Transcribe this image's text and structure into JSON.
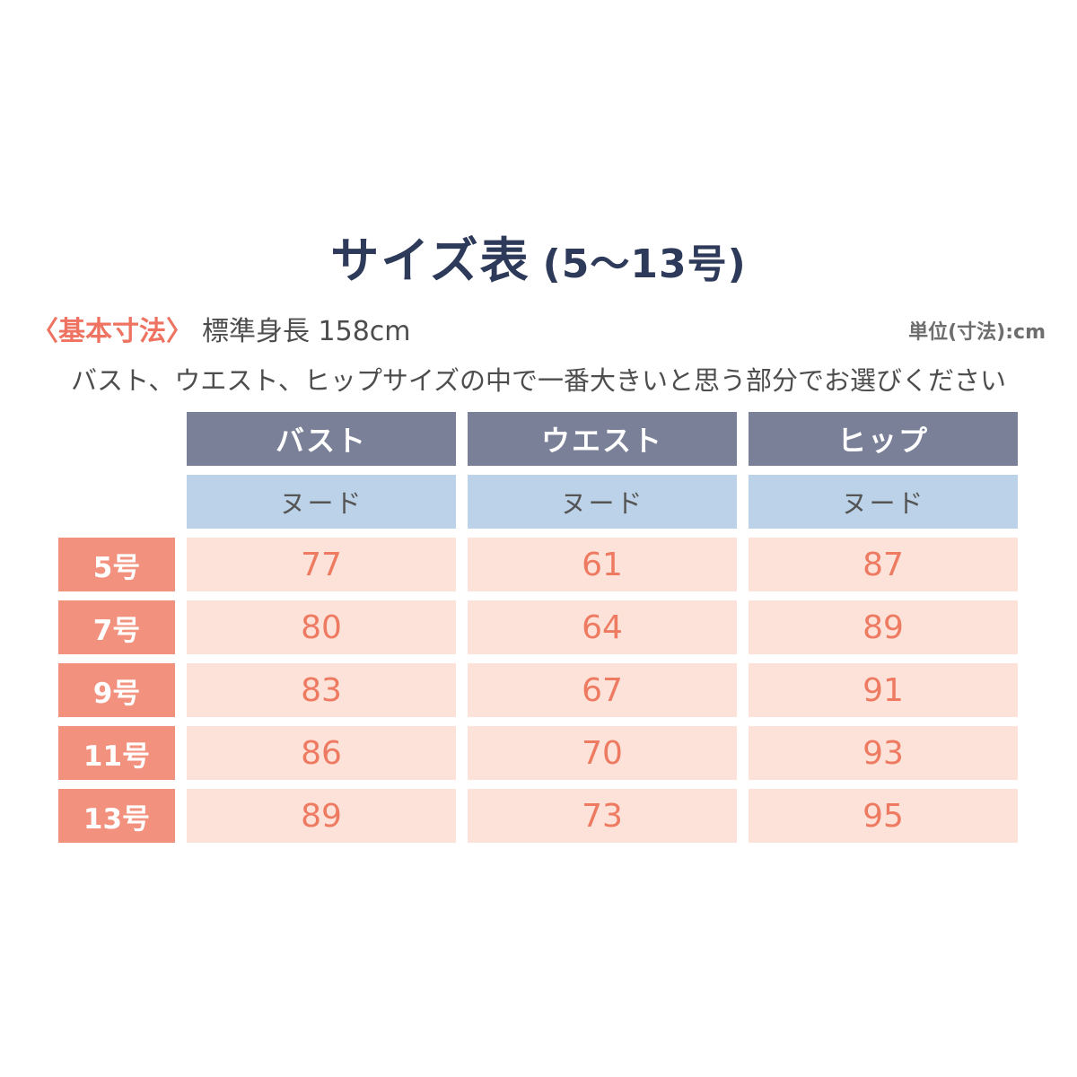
{
  "page": {
    "title_main": "サイズ表",
    "title_sub": "(5〜13号)",
    "meta_bracket": "〈基本寸法〉",
    "meta_height": "標準身長 158cm",
    "unit_note": "単位(寸法):cm",
    "description": "バスト、ウエスト、ヒップサイズの中で一番大きいと思う部分でお選びください"
  },
  "colors": {
    "title_navy": "#2e3a59",
    "accent_coral": "#ee7361",
    "header_slate": "#7a8098",
    "subheader_blue": "#bcd2e8",
    "row_label_salmon": "#f2917e",
    "cell_peach": "#fce2d8",
    "cell_value_coral": "#ee7a61",
    "text_gray": "#4d4d4d",
    "unit_gray": "#6e6e6e"
  },
  "chart_data": {
    "type": "table",
    "title": "サイズ表 (5〜13号)",
    "unit": "cm",
    "base_height": "標準身長 158cm",
    "columns": [
      "バスト",
      "ウエスト",
      "ヒップ"
    ],
    "sub_header": [
      "ヌード",
      "ヌード",
      "ヌード"
    ],
    "row_label_header": "",
    "rows": [
      {
        "label": "5号",
        "values": [
          77,
          61,
          87
        ]
      },
      {
        "label": "7号",
        "values": [
          80,
          64,
          89
        ]
      },
      {
        "label": "9号",
        "values": [
          83,
          67,
          91
        ]
      },
      {
        "label": "11号",
        "values": [
          86,
          70,
          93
        ]
      },
      {
        "label": "13号",
        "values": [
          89,
          73,
          95
        ]
      }
    ]
  }
}
